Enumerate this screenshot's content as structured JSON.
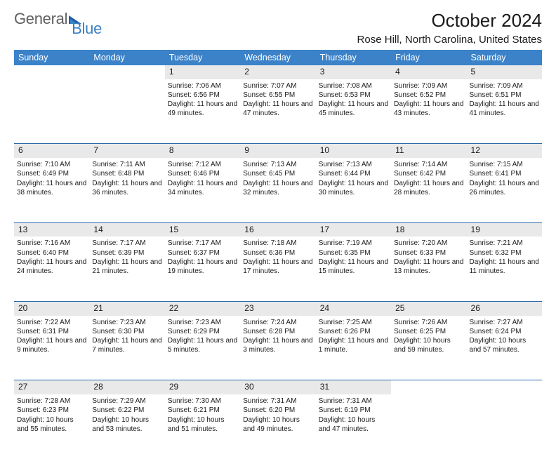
{
  "brand": {
    "part1": "General",
    "part2": "Blue"
  },
  "title": "October 2024",
  "location": "Rose Hill, North Carolina, United States",
  "colors": {
    "header_bg": "#3b82c9",
    "header_text": "#ffffff",
    "daynum_bg": "#e9e9e9",
    "row_border": "#2a6aa8",
    "body_text": "#1a1a1a",
    "logo_gray": "#606060",
    "logo_blue": "#3b7fc4"
  },
  "day_headers": [
    "Sunday",
    "Monday",
    "Tuesday",
    "Wednesday",
    "Thursday",
    "Friday",
    "Saturday"
  ],
  "weeks": [
    [
      null,
      null,
      {
        "n": "1",
        "sunrise": "7:06 AM",
        "sunset": "6:56 PM",
        "daylight": "11 hours and 49 minutes."
      },
      {
        "n": "2",
        "sunrise": "7:07 AM",
        "sunset": "6:55 PM",
        "daylight": "11 hours and 47 minutes."
      },
      {
        "n": "3",
        "sunrise": "7:08 AM",
        "sunset": "6:53 PM",
        "daylight": "11 hours and 45 minutes."
      },
      {
        "n": "4",
        "sunrise": "7:09 AM",
        "sunset": "6:52 PM",
        "daylight": "11 hours and 43 minutes."
      },
      {
        "n": "5",
        "sunrise": "7:09 AM",
        "sunset": "6:51 PM",
        "daylight": "11 hours and 41 minutes."
      }
    ],
    [
      {
        "n": "6",
        "sunrise": "7:10 AM",
        "sunset": "6:49 PM",
        "daylight": "11 hours and 38 minutes."
      },
      {
        "n": "7",
        "sunrise": "7:11 AM",
        "sunset": "6:48 PM",
        "daylight": "11 hours and 36 minutes."
      },
      {
        "n": "8",
        "sunrise": "7:12 AM",
        "sunset": "6:46 PM",
        "daylight": "11 hours and 34 minutes."
      },
      {
        "n": "9",
        "sunrise": "7:13 AM",
        "sunset": "6:45 PM",
        "daylight": "11 hours and 32 minutes."
      },
      {
        "n": "10",
        "sunrise": "7:13 AM",
        "sunset": "6:44 PM",
        "daylight": "11 hours and 30 minutes."
      },
      {
        "n": "11",
        "sunrise": "7:14 AM",
        "sunset": "6:42 PM",
        "daylight": "11 hours and 28 minutes."
      },
      {
        "n": "12",
        "sunrise": "7:15 AM",
        "sunset": "6:41 PM",
        "daylight": "11 hours and 26 minutes."
      }
    ],
    [
      {
        "n": "13",
        "sunrise": "7:16 AM",
        "sunset": "6:40 PM",
        "daylight": "11 hours and 24 minutes."
      },
      {
        "n": "14",
        "sunrise": "7:17 AM",
        "sunset": "6:39 PM",
        "daylight": "11 hours and 21 minutes."
      },
      {
        "n": "15",
        "sunrise": "7:17 AM",
        "sunset": "6:37 PM",
        "daylight": "11 hours and 19 minutes."
      },
      {
        "n": "16",
        "sunrise": "7:18 AM",
        "sunset": "6:36 PM",
        "daylight": "11 hours and 17 minutes."
      },
      {
        "n": "17",
        "sunrise": "7:19 AM",
        "sunset": "6:35 PM",
        "daylight": "11 hours and 15 minutes."
      },
      {
        "n": "18",
        "sunrise": "7:20 AM",
        "sunset": "6:33 PM",
        "daylight": "11 hours and 13 minutes."
      },
      {
        "n": "19",
        "sunrise": "7:21 AM",
        "sunset": "6:32 PM",
        "daylight": "11 hours and 11 minutes."
      }
    ],
    [
      {
        "n": "20",
        "sunrise": "7:22 AM",
        "sunset": "6:31 PM",
        "daylight": "11 hours and 9 minutes."
      },
      {
        "n": "21",
        "sunrise": "7:23 AM",
        "sunset": "6:30 PM",
        "daylight": "11 hours and 7 minutes."
      },
      {
        "n": "22",
        "sunrise": "7:23 AM",
        "sunset": "6:29 PM",
        "daylight": "11 hours and 5 minutes."
      },
      {
        "n": "23",
        "sunrise": "7:24 AM",
        "sunset": "6:28 PM",
        "daylight": "11 hours and 3 minutes."
      },
      {
        "n": "24",
        "sunrise": "7:25 AM",
        "sunset": "6:26 PM",
        "daylight": "11 hours and 1 minute."
      },
      {
        "n": "25",
        "sunrise": "7:26 AM",
        "sunset": "6:25 PM",
        "daylight": "10 hours and 59 minutes."
      },
      {
        "n": "26",
        "sunrise": "7:27 AM",
        "sunset": "6:24 PM",
        "daylight": "10 hours and 57 minutes."
      }
    ],
    [
      {
        "n": "27",
        "sunrise": "7:28 AM",
        "sunset": "6:23 PM",
        "daylight": "10 hours and 55 minutes."
      },
      {
        "n": "28",
        "sunrise": "7:29 AM",
        "sunset": "6:22 PM",
        "daylight": "10 hours and 53 minutes."
      },
      {
        "n": "29",
        "sunrise": "7:30 AM",
        "sunset": "6:21 PM",
        "daylight": "10 hours and 51 minutes."
      },
      {
        "n": "30",
        "sunrise": "7:31 AM",
        "sunset": "6:20 PM",
        "daylight": "10 hours and 49 minutes."
      },
      {
        "n": "31",
        "sunrise": "7:31 AM",
        "sunset": "6:19 PM",
        "daylight": "10 hours and 47 minutes."
      },
      null,
      null
    ]
  ],
  "labels": {
    "sunrise": "Sunrise:",
    "sunset": "Sunset:",
    "daylight": "Daylight:"
  }
}
